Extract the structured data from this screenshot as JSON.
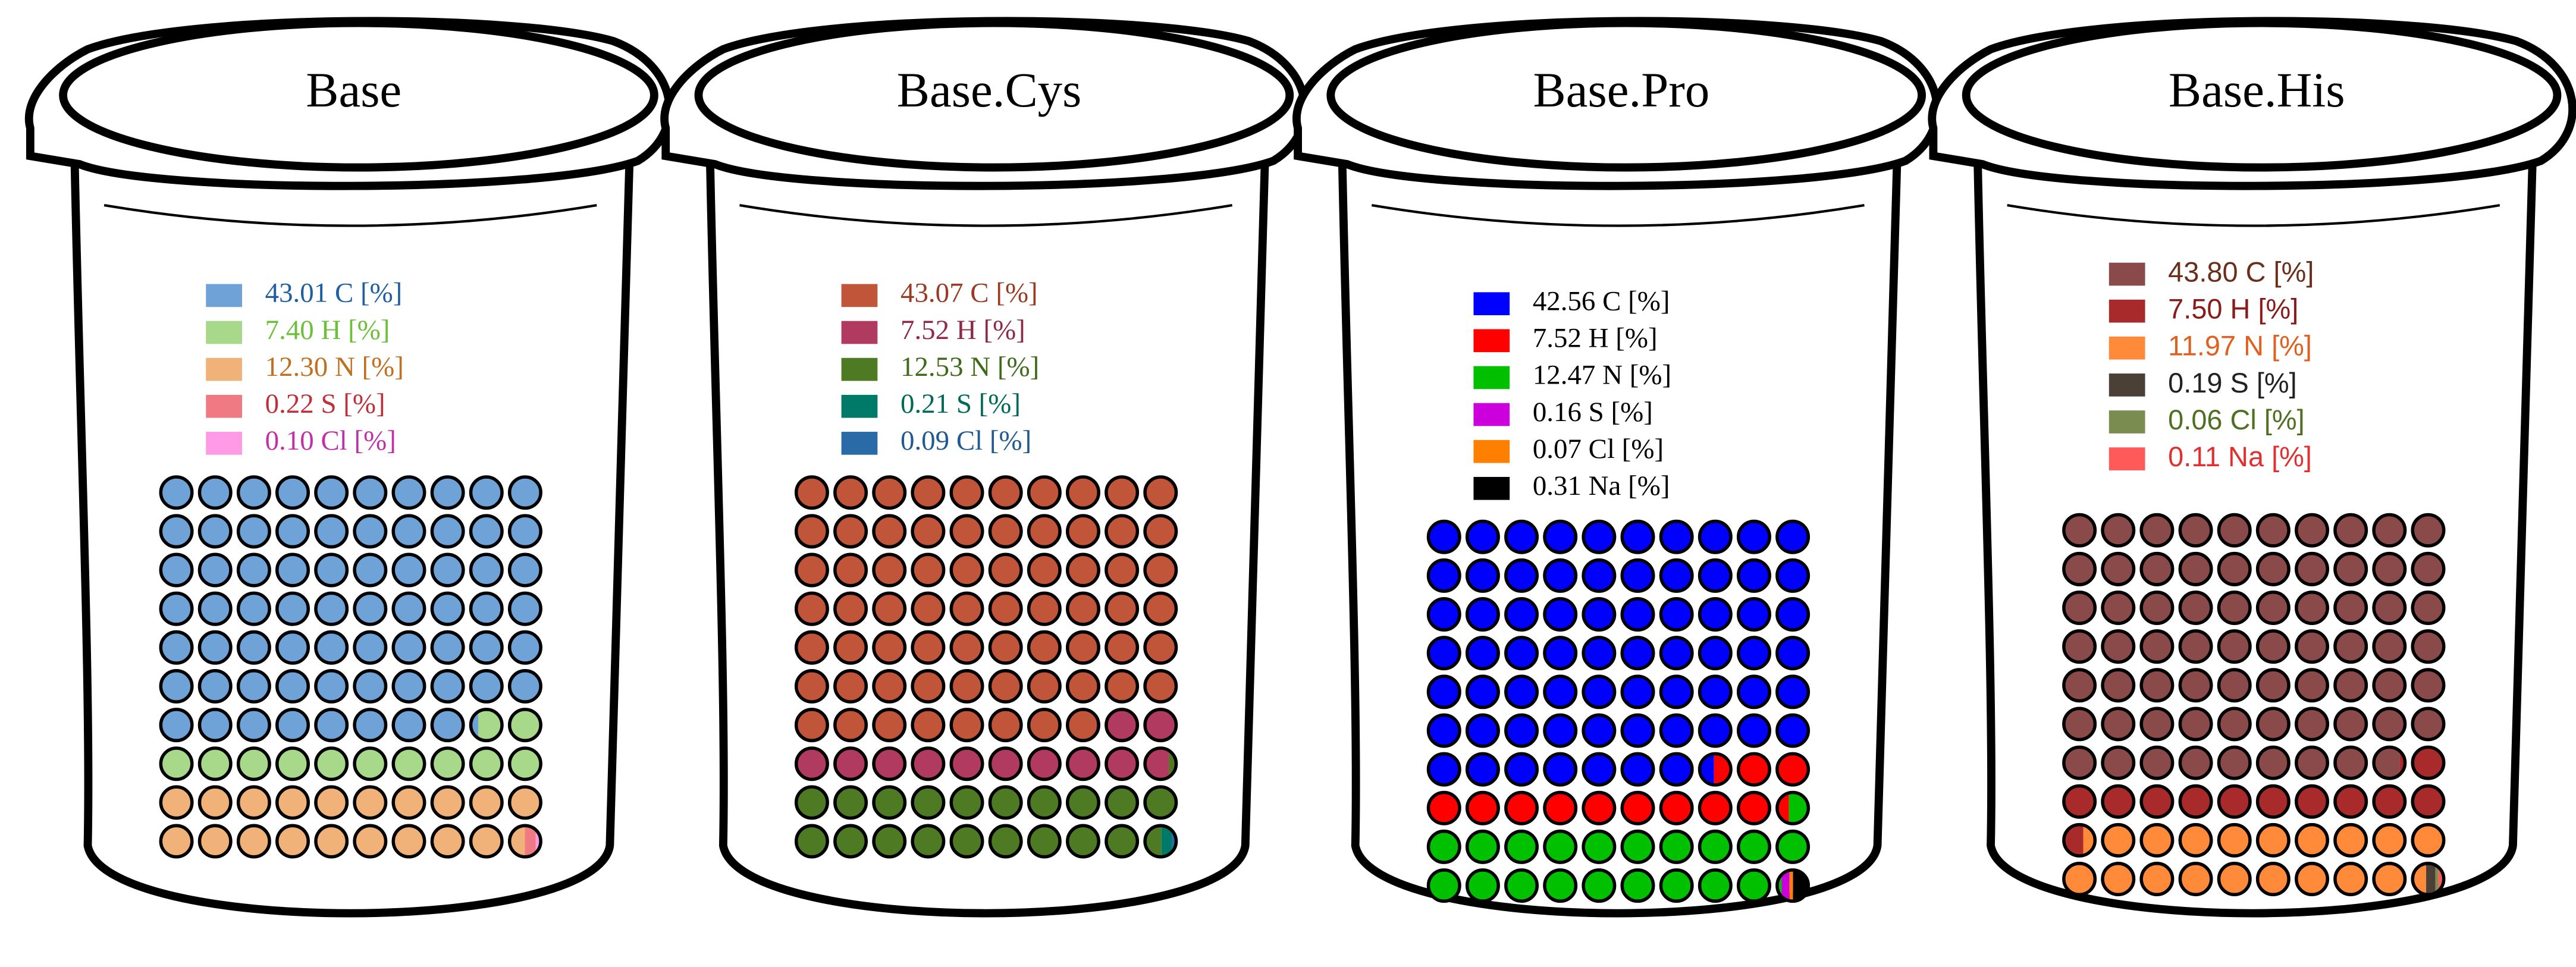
{
  "chart_data": [
    {
      "type": "waffle",
      "title": "Base",
      "values": [
        43.01,
        7.4,
        12.3,
        0.22,
        0.1
      ],
      "value_labels": [
        "43.01 C [%]",
        "7.40 H [%]",
        "12.30 N [%]",
        "0.22 S [%]",
        "0.10 Cl [%]"
      ],
      "colors": [
        "#6fa3d8",
        "#a8d98a",
        "#f1b27a",
        "#f07a84",
        "#ff9ae6"
      ],
      "label_colors": [
        "#1f5fa0",
        "#6cbf3a",
        "#c07020",
        "#c0303a",
        "#c030a8"
      ]
    },
    {
      "type": "waffle",
      "title": "Base.Cys",
      "values": [
        43.07,
        7.52,
        12.53,
        0.21,
        0.09
      ],
      "value_labels": [
        "43.07 C [%]",
        "7.52 H [%]",
        "12.53 N [%]",
        "0.21 S [%]",
        "0.09 Cl [%]"
      ],
      "colors": [
        "#c0553a",
        "#b03a60",
        "#4f7a24",
        "#007a68",
        "#2a6aa6"
      ],
      "label_colors": [
        "#9a3a22",
        "#902848",
        "#3e6a1a",
        "#006a58",
        "#1f5a90"
      ]
    },
    {
      "type": "waffle",
      "title": "Base.Pro",
      "values": [
        42.56,
        7.52,
        12.47,
        0.16,
        0.07,
        0.31
      ],
      "value_labels": [
        "42.56 C [%]",
        "7.52 H [%]",
        "12.47 N [%]",
        "0.16 S [%]",
        "0.07 Cl [%]",
        "0.31 Na [%]"
      ],
      "colors": [
        "#0000ff",
        "#ff0000",
        "#00c000",
        "#cc00dd",
        "#ff8000",
        "#000000"
      ],
      "label_colors": [
        "#000000",
        "#000000",
        "#000000",
        "#000000",
        "#000000",
        "#000000"
      ]
    },
    {
      "type": "waffle",
      "title": "Base.His",
      "values": [
        43.8,
        7.5,
        11.97,
        0.19,
        0.06,
        0.11
      ],
      "value_labels": [
        "43.80 C [%]",
        "7.50 H [%]",
        "11.97 N [%]",
        "0.19 S [%]",
        "0.06 Cl [%]",
        "0.11 Na [%]"
      ],
      "colors": [
        "#8a4a4a",
        "#a82a2a",
        "#ff8a3a",
        "#4a4036",
        "#7a8c50",
        "#ff5a5a"
      ],
      "label_colors": [
        "#6a2e1a",
        "#8b1a1a",
        "#e06020",
        "#222222",
        "#4f7020",
        "#e03030"
      ]
    }
  ]
}
